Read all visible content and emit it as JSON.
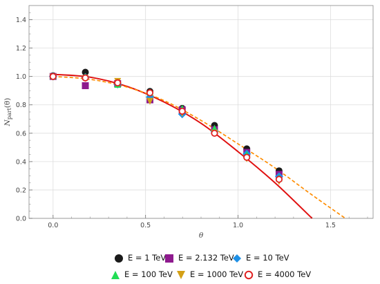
{
  "chart_data": {
    "type": "scatter",
    "xlabel": "θ",
    "ylabel_main": "N",
    "ylabel_sub": "part",
    "ylabel_arg": "(θ)",
    "xlim": [
      -0.13,
      1.73
    ],
    "ylim": [
      0,
      1.5
    ],
    "x_ticks": [
      0.0,
      0.5,
      1.0,
      1.5
    ],
    "x_tick_labels": [
      "0.0",
      "0.5",
      "1.0",
      "1.5"
    ],
    "y_ticks": [
      0.0,
      0.2,
      0.4,
      0.6,
      0.8,
      1.0,
      1.2,
      1.4
    ],
    "y_tick_labels": [
      "0.0",
      "0.2",
      "0.4",
      "0.6",
      "0.8",
      "1.0",
      "1.2",
      "1.4"
    ],
    "legend_placement": "bottom",
    "series": [
      {
        "name": "E = 1 TeV",
        "marker": "circle",
        "color": "#1a1a1a",
        "x": [
          0.0,
          0.1745,
          0.349,
          0.5236,
          0.6981,
          0.8727,
          1.0472,
          1.2217
        ],
        "y": [
          1.005,
          1.03,
          0.955,
          0.895,
          0.775,
          0.655,
          0.49,
          0.335
        ]
      },
      {
        "name": "E = 2.132 TeV",
        "marker": "square",
        "color": "#8e1a8e",
        "x": [
          0.0,
          0.1745,
          0.349,
          0.5236,
          0.6981,
          0.8727,
          1.0472,
          1.2217
        ],
        "y": [
          1.0,
          0.935,
          0.95,
          0.835,
          0.765,
          0.625,
          0.465,
          0.31
        ]
      },
      {
        "name": "E = 10 TeV",
        "marker": "diamond",
        "color": "#1e90e6",
        "x": [
          0.0,
          0.1745,
          0.349,
          0.5236,
          0.6981,
          0.8727,
          1.0472,
          1.2217
        ],
        "y": [
          1.0,
          0.995,
          0.945,
          0.855,
          0.735,
          0.615,
          0.455,
          0.295
        ]
      },
      {
        "name": "E = 100 TeV",
        "marker": "triangle-up",
        "color": "#22dd55",
        "x": [
          0.0,
          0.1745,
          0.349,
          0.5236,
          0.6981,
          0.8727,
          1.0472,
          1.2217
        ],
        "y": [
          1.0,
          0.995,
          0.94,
          0.885,
          0.77,
          0.63,
          0.445,
          0.28
        ]
      },
      {
        "name": "E = 1000 TeV",
        "marker": "triangle-down",
        "color": "#d4a017",
        "x": [
          0.0,
          0.1745,
          0.349,
          0.5236,
          0.6981,
          0.8727,
          1.0472,
          1.2217
        ],
        "y": [
          1.0,
          0.99,
          0.97,
          0.83,
          0.745,
          0.605,
          0.425,
          0.265
        ]
      },
      {
        "name": "E = 4000 TeV",
        "marker": "open-circle",
        "color": "#e02020",
        "x": [
          0.0,
          0.1745,
          0.349,
          0.5236,
          0.6981,
          0.8727,
          1.0472,
          1.2217
        ],
        "y": [
          1.0,
          0.99,
          0.955,
          0.885,
          0.755,
          0.6,
          0.43,
          0.275
        ]
      }
    ],
    "curves": [
      {
        "style": "solid",
        "color": "#e01010",
        "width": 2.0,
        "x": [
          0.0,
          0.2,
          0.4,
          0.6,
          0.8,
          1.0,
          1.2,
          1.4
        ],
        "y": [
          1.015,
          0.995,
          0.93,
          0.82,
          0.67,
          0.47,
          0.25,
          0.0
        ]
      },
      {
        "style": "dashed",
        "color": "#ff8c00",
        "width": 1.7,
        "x": [
          0.0,
          0.2,
          0.4,
          0.6,
          0.8,
          1.0,
          1.2,
          1.4,
          1.58
        ],
        "y": [
          1.0,
          0.98,
          0.925,
          0.83,
          0.69,
          0.525,
          0.355,
          0.165,
          0.0
        ]
      }
    ]
  }
}
